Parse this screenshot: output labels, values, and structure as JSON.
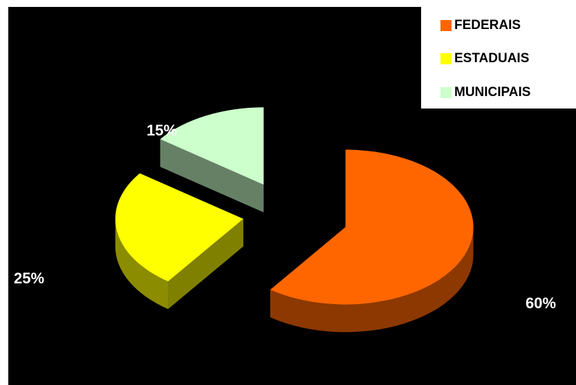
{
  "chart_data": {
    "type": "pie",
    "title": "",
    "categories": [
      "FEDERAIS",
      "ESTADUAIS",
      "MUNICIPAIS"
    ],
    "values": [
      60,
      25,
      15
    ],
    "data_labels": [
      "60%",
      "25%",
      "15%"
    ],
    "colors": [
      "#ff6600",
      "#ffff00",
      "#ccffcc"
    ],
    "exploded": true,
    "three_d": true,
    "legend": "top-right"
  },
  "legend": {
    "items": [
      {
        "label": "FEDERAIS",
        "color": "#ff6600"
      },
      {
        "label": "ESTADUAIS",
        "color": "#ffff00"
      },
      {
        "label": "MUNICIPAIS",
        "color": "#ccffcc"
      }
    ]
  }
}
